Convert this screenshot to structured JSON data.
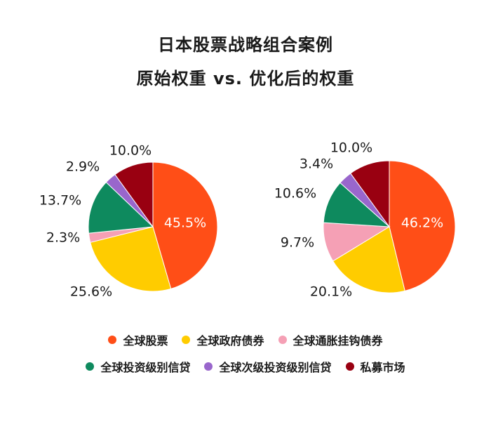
{
  "title_line1": "日本股票战略组合案例",
  "title_line2": "原始权重 vs. 优化后的权重",
  "colors": {
    "global_equity": "#ff4e17",
    "global_gov_bonds": "#ffcc00",
    "global_inflation_linked": "#f5a0b5",
    "global_ig_credit": "#0e8a5e",
    "global_sub_ig_credit": "#9966cc",
    "private_markets": "#990011"
  },
  "chart_data": [
    {
      "type": "pie",
      "categories": [
        "全球股票",
        "全球政府债券",
        "全球通胀挂钩债券",
        "全球投资级别信贷",
        "全球次级投资级别信贷",
        "私募市场"
      ],
      "values": [
        45.5,
        25.6,
        2.3,
        13.7,
        2.9,
        10.0
      ],
      "labels": [
        "45.5%",
        "25.6%",
        "2.3%",
        "13.7%",
        "2.9%",
        "10.0%"
      ]
    },
    {
      "type": "pie",
      "categories": [
        "全球股票",
        "全球政府债券",
        "全球通胀挂钩债券",
        "全球投资级别信贷",
        "全球次级投资级别信贷",
        "私募市场"
      ],
      "values": [
        46.2,
        20.1,
        9.7,
        10.6,
        3.4,
        10.0
      ],
      "labels": [
        "46.2%",
        "20.1%",
        "9.7%",
        "10.6%",
        "3.4%",
        "10.0%"
      ]
    }
  ],
  "legend": [
    {
      "label": "全球股票",
      "color_key": "global_equity"
    },
    {
      "label": "全球政府债券",
      "color_key": "global_gov_bonds"
    },
    {
      "label": "全球通胀挂钩债券",
      "color_key": "global_inflation_linked"
    },
    {
      "label": "全球投资级别信贷",
      "color_key": "global_ig_credit"
    },
    {
      "label": "全球次级投资级别信贷",
      "color_key": "global_sub_ig_credit"
    },
    {
      "label": "私募市场",
      "color_key": "private_markets"
    }
  ]
}
